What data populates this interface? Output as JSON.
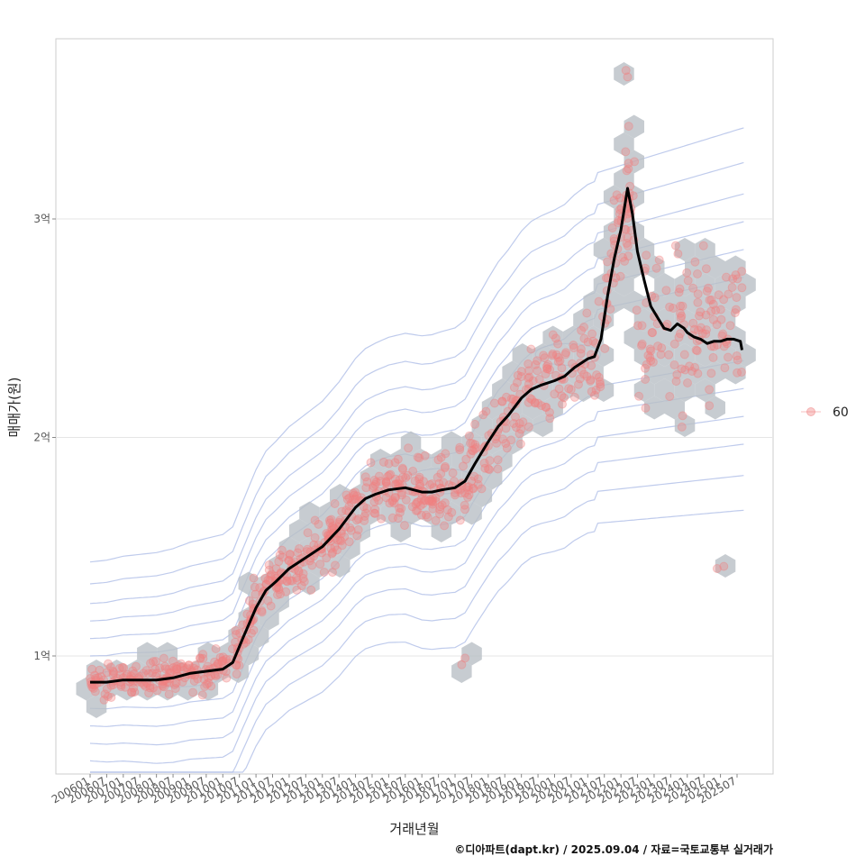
{
  "chart_data": {
    "type": "scatter",
    "xlabel": "거래년월",
    "ylabel": "매매가(원)",
    "caption": "©디아파트(dapt.kr) / 2025.09.04 / 자료=국토교통부 실거래가",
    "x_ticks": [
      "200601",
      "200607",
      "200701",
      "200707",
      "200801",
      "200807",
      "200901",
      "200907",
      "201001",
      "201007",
      "201101",
      "201107",
      "201201",
      "201207",
      "201301",
      "201307",
      "201401",
      "201407",
      "201501",
      "201507",
      "201601",
      "201607",
      "201701",
      "201707",
      "201801",
      "201807",
      "201901",
      "201907",
      "202001",
      "202007",
      "202101",
      "202107",
      "202201",
      "202207",
      "202301",
      "202307",
      "202401",
      "202407",
      "202501",
      "202507"
    ],
    "y_ticks": [
      {
        "value": 1.0,
        "label": "1억"
      },
      {
        "value": 2.0,
        "label": "2억"
      },
      {
        "value": 3.0,
        "label": "3억"
      }
    ],
    "ylim": [
      0.46,
      3.83
    ],
    "xlim": [
      2005.2,
      2026.2
    ],
    "grid": true,
    "legend": {
      "position": "right",
      "entries": [
        {
          "label": "60",
          "color": "#f08080"
        }
      ]
    },
    "colors": {
      "points": "#f08080",
      "hex": "#b9bfc5",
      "contour": "#a9b9e6",
      "trend": "#000000"
    },
    "trend_series": {
      "name": "",
      "x": [
        2006.0,
        2006.5,
        2007.0,
        2007.5,
        2008.0,
        2008.5,
        2009.0,
        2009.5,
        2010.0,
        2010.3,
        2010.6,
        2011.0,
        2011.3,
        2011.6,
        2012.0,
        2012.3,
        2012.6,
        2013.0,
        2013.5,
        2014.0,
        2014.3,
        2014.6,
        2015.0,
        2015.5,
        2016.0,
        2016.3,
        2016.6,
        2017.0,
        2017.3,
        2017.6,
        2018.0,
        2018.3,
        2018.6,
        2019.0,
        2019.3,
        2019.6,
        2020.0,
        2020.3,
        2020.6,
        2021.0,
        2021.2,
        2021.4,
        2021.6,
        2021.8,
        2022.0,
        2022.2,
        2022.35,
        2022.5,
        2022.7,
        2022.9,
        2023.1,
        2023.3,
        2023.5,
        2023.7,
        2023.9,
        2024.0,
        2024.2,
        2024.4,
        2024.6,
        2024.8,
        2025.0,
        2025.2,
        2025.4,
        2025.6,
        2025.65
      ],
      "y": [
        0.88,
        0.88,
        0.89,
        0.89,
        0.89,
        0.9,
        0.92,
        0.93,
        0.94,
        0.97,
        1.08,
        1.22,
        1.3,
        1.34,
        1.4,
        1.43,
        1.46,
        1.5,
        1.58,
        1.68,
        1.72,
        1.74,
        1.76,
        1.77,
        1.75,
        1.75,
        1.76,
        1.77,
        1.8,
        1.88,
        1.98,
        2.05,
        2.1,
        2.18,
        2.22,
        2.24,
        2.26,
        2.28,
        2.32,
        2.36,
        2.37,
        2.45,
        2.65,
        2.82,
        2.95,
        3.14,
        3.02,
        2.85,
        2.72,
        2.6,
        2.55,
        2.5,
        2.49,
        2.52,
        2.5,
        2.48,
        2.46,
        2.45,
        2.43,
        2.44,
        2.44,
        2.45,
        2.45,
        2.44,
        2.4
      ]
    }
  }
}
